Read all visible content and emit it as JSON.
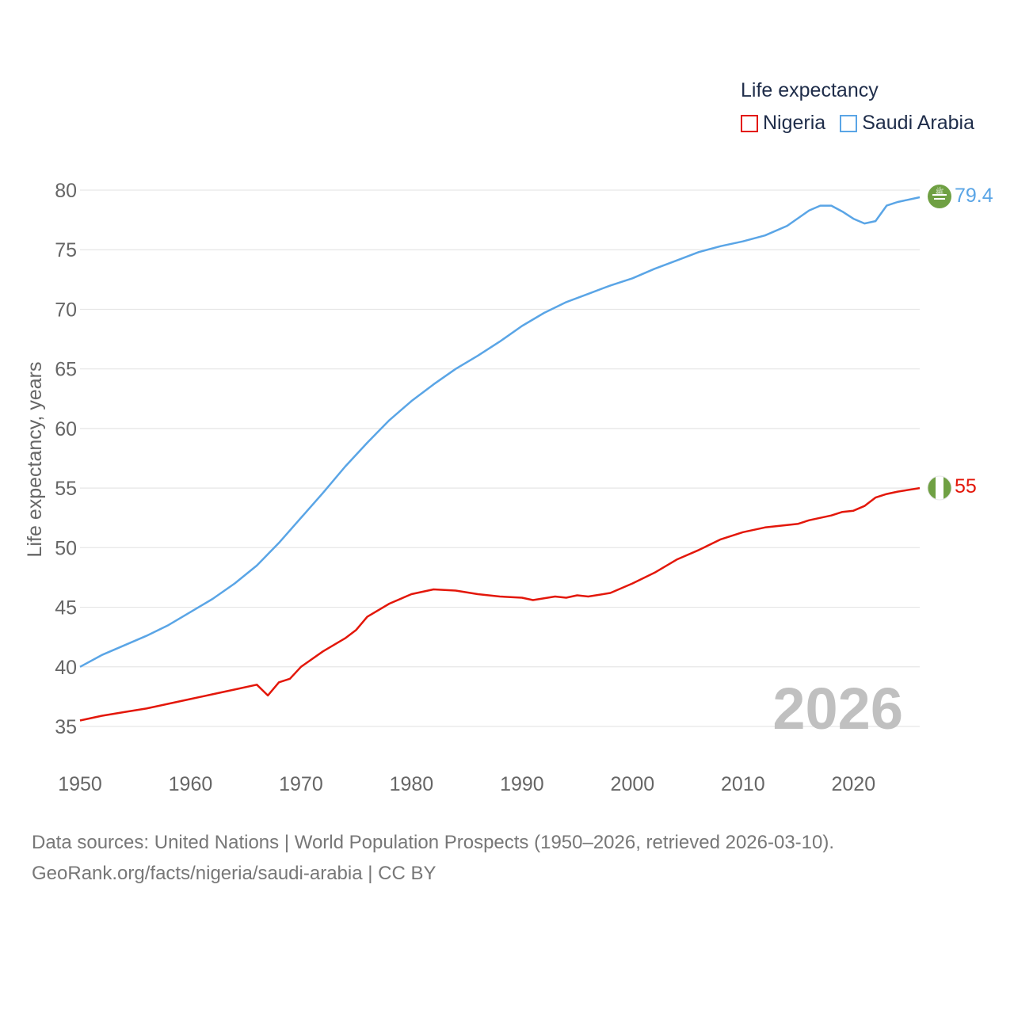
{
  "legend": {
    "title": "Life expectancy",
    "items": [
      {
        "label": "Nigeria",
        "color": "#e3170a"
      },
      {
        "label": "Saudi Arabia",
        "color": "#5aa5e6"
      }
    ]
  },
  "year_label": "2026",
  "end_labels": {
    "saudi_arabia": "79.4",
    "nigeria": "55"
  },
  "flag_icons": {
    "saudi_arabia": "saudi-flag-icon",
    "nigeria": "nigeria-flag-icon"
  },
  "source": {
    "line1": "Data sources: United Nations | World Population Prospects (1950–2026, retrieved 2026-03-10).",
    "line2": "GeoRank.org/facts/nigeria/saudi-arabia | CC BY"
  },
  "chart_data": {
    "type": "line",
    "title": "Life expectancy",
    "xlabel": "",
    "ylabel": "Life expectancy, years",
    "xlim": [
      1950,
      2026
    ],
    "ylim": [
      32,
      82
    ],
    "x_ticks": [
      1950,
      1960,
      1970,
      1980,
      1990,
      2000,
      2010,
      2020
    ],
    "y_ticks": [
      35,
      40,
      45,
      50,
      55,
      60,
      65,
      70,
      75,
      80
    ],
    "grid": true,
    "legend_position": "top-right",
    "series": [
      {
        "name": "Saudi Arabia",
        "color": "#5aa5e6",
        "points": [
          [
            1950,
            40.0
          ],
          [
            1952,
            41.0
          ],
          [
            1954,
            41.8
          ],
          [
            1956,
            42.6
          ],
          [
            1958,
            43.5
          ],
          [
            1960,
            44.6
          ],
          [
            1962,
            45.7
          ],
          [
            1964,
            47.0
          ],
          [
            1966,
            48.5
          ],
          [
            1968,
            50.4
          ],
          [
            1970,
            52.5
          ],
          [
            1972,
            54.6
          ],
          [
            1974,
            56.8
          ],
          [
            1976,
            58.8
          ],
          [
            1978,
            60.7
          ],
          [
            1980,
            62.3
          ],
          [
            1982,
            63.7
          ],
          [
            1984,
            65.0
          ],
          [
            1986,
            66.1
          ],
          [
            1988,
            67.3
          ],
          [
            1990,
            68.6
          ],
          [
            1992,
            69.7
          ],
          [
            1994,
            70.6
          ],
          [
            1996,
            71.3
          ],
          [
            1998,
            72.0
          ],
          [
            2000,
            72.6
          ],
          [
            2002,
            73.4
          ],
          [
            2004,
            74.1
          ],
          [
            2006,
            74.8
          ],
          [
            2008,
            75.3
          ],
          [
            2010,
            75.7
          ],
          [
            2012,
            76.2
          ],
          [
            2014,
            77.0
          ],
          [
            2016,
            78.3
          ],
          [
            2017,
            78.7
          ],
          [
            2018,
            78.7
          ],
          [
            2019,
            78.2
          ],
          [
            2020,
            77.6
          ],
          [
            2021,
            77.2
          ],
          [
            2022,
            77.4
          ],
          [
            2023,
            78.7
          ],
          [
            2024,
            79.0
          ],
          [
            2026,
            79.4
          ]
        ]
      },
      {
        "name": "Nigeria",
        "color": "#e3170a",
        "points": [
          [
            1950,
            35.5
          ],
          [
            1952,
            35.9
          ],
          [
            1954,
            36.2
          ],
          [
            1956,
            36.5
          ],
          [
            1958,
            36.9
          ],
          [
            1960,
            37.3
          ],
          [
            1962,
            37.7
          ],
          [
            1964,
            38.1
          ],
          [
            1966,
            38.5
          ],
          [
            1967,
            37.6
          ],
          [
            1968,
            38.7
          ],
          [
            1969,
            39.0
          ],
          [
            1970,
            40.0
          ],
          [
            1972,
            41.3
          ],
          [
            1974,
            42.4
          ],
          [
            1975,
            43.1
          ],
          [
            1976,
            44.2
          ],
          [
            1978,
            45.3
          ],
          [
            1980,
            46.1
          ],
          [
            1982,
            46.5
          ],
          [
            1984,
            46.4
          ],
          [
            1986,
            46.1
          ],
          [
            1988,
            45.9
          ],
          [
            1990,
            45.8
          ],
          [
            1991,
            45.6
          ],
          [
            1993,
            45.9
          ],
          [
            1994,
            45.8
          ],
          [
            1995,
            46.0
          ],
          [
            1996,
            45.9
          ],
          [
            1998,
            46.2
          ],
          [
            2000,
            47.0
          ],
          [
            2002,
            47.9
          ],
          [
            2004,
            49.0
          ],
          [
            2006,
            49.8
          ],
          [
            2008,
            50.7
          ],
          [
            2010,
            51.3
          ],
          [
            2012,
            51.7
          ],
          [
            2014,
            51.9
          ],
          [
            2015,
            52.0
          ],
          [
            2016,
            52.3
          ],
          [
            2018,
            52.7
          ],
          [
            2019,
            53.0
          ],
          [
            2020,
            53.1
          ],
          [
            2021,
            53.5
          ],
          [
            2022,
            54.2
          ],
          [
            2023,
            54.5
          ],
          [
            2024,
            54.7
          ],
          [
            2026,
            55.0
          ]
        ]
      }
    ]
  }
}
